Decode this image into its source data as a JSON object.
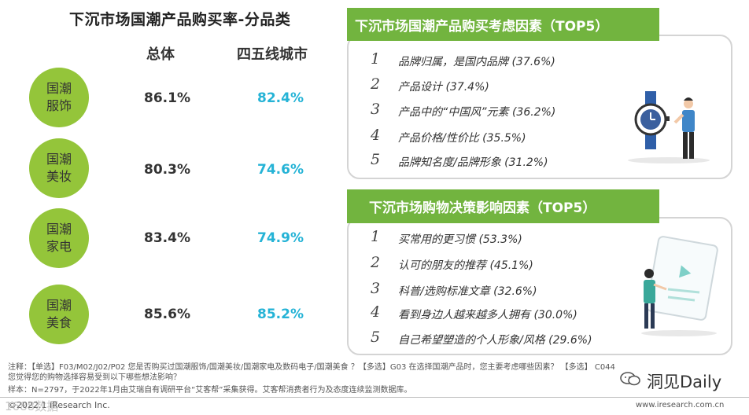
{
  "left": {
    "title": "下沉市场国潮产品购买率-分品类",
    "col_total": "总体",
    "col_city": "四五线城市",
    "rows": [
      {
        "cat": "国潮服饰",
        "total": "86.1%",
        "city": "82.4%"
      },
      {
        "cat": "国潮美妆",
        "total": "80.3%",
        "city": "74.6%"
      },
      {
        "cat": "国潮家电",
        "total": "83.4%",
        "city": "74.9%"
      },
      {
        "cat": "国潮美食",
        "total": "85.6%",
        "city": "85.2%"
      }
    ]
  },
  "top_box": {
    "header": "下沉市场国潮产品购买考虑因素（TOP5）",
    "items": [
      {
        "n": "1",
        "text": "品牌归属，是国内品牌 (37.6%)"
      },
      {
        "n": "2",
        "text": "产品设计 (37.4%)"
      },
      {
        "n": "3",
        "text": "产品中的“中国风”元素 (36.2%)"
      },
      {
        "n": "4",
        "text": "产品价格/性价比 (35.5%)"
      },
      {
        "n": "5",
        "text": "品牌知名度/品牌形象 (31.2%)"
      }
    ]
  },
  "bottom_box": {
    "header": "下沉市场购物决策影响因素（TOP5）",
    "items": [
      {
        "n": "1",
        "text": "买常用的更习惯 (53.3%)"
      },
      {
        "n": "2",
        "text": "认可的朋友的推荐 (45.1%)"
      },
      {
        "n": "3",
        "text": "科普/选购标准文章 (32.6%)"
      },
      {
        "n": "4",
        "text": "看到身边人越来越多人拥有 (30.0%)"
      },
      {
        "n": "5",
        "text": "自己希望塑造的个人形象/风格 (29.6%)"
      }
    ]
  },
  "notes": {
    "line1": "注释：【单选】F03/M02/J02/P02 您是否购买过国潮服饰/国潮美妆/国潮家电及数码电子/国潮美食 ？【多选】G03 在选择国潮产品时，您主要考虑哪些因素？ 【多选】 C044",
    "line2": "您觉得您的购物选择容易受到以下哪些想法影响？",
    "line3": "样本：N=2797，于2022年1月由艾瑞自有调研平台“艾客帮”采集获得。艾客帮消费者行为及态度连续监测数据库。"
  },
  "footer": {
    "copyright": "©2022.1 iResearch Inc.",
    "url": "www.iresearch.com.cn",
    "watermark_left": "1688数据",
    "brand": "洞见Daily"
  },
  "colors": {
    "green": "#94c53a",
    "header_green": "#72b43f",
    "cyan": "#25b3d6"
  }
}
